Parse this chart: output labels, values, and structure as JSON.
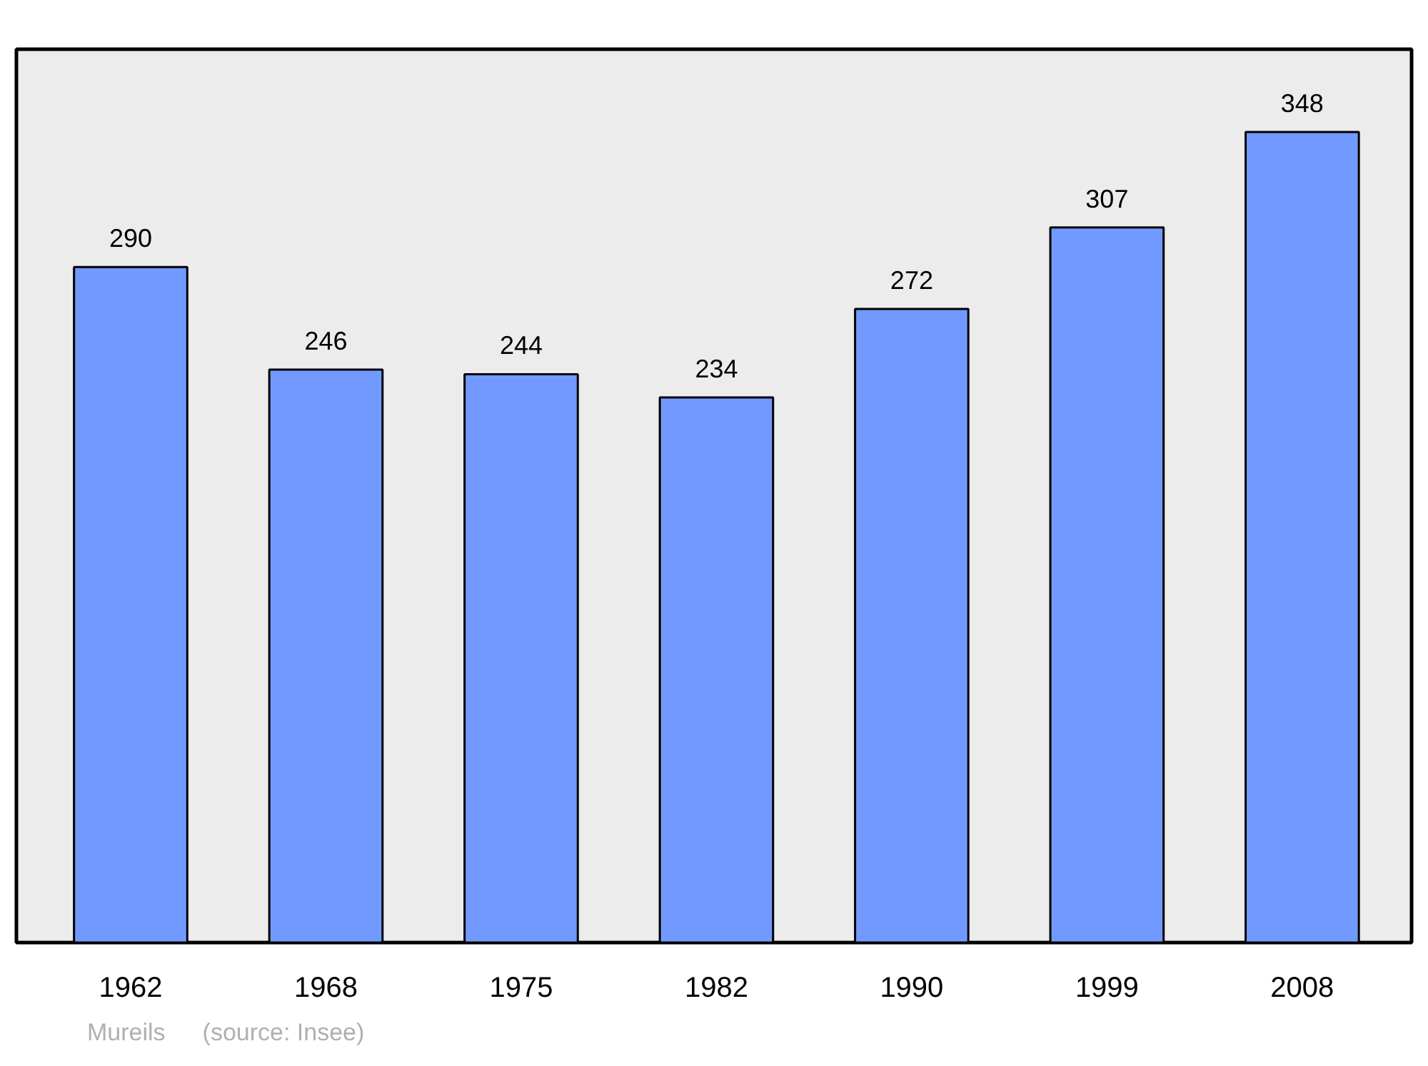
{
  "chart_data": {
    "type": "bar",
    "categories": [
      "1962",
      "1968",
      "1975",
      "1982",
      "1990",
      "1999",
      "2008"
    ],
    "values": [
      290,
      246,
      244,
      234,
      272,
      307,
      348
    ],
    "color": "#7299ff",
    "data_labels": true,
    "grid": false,
    "tick_labels": "x",
    "annotations": [
      "Mureils",
      "(source: Insee)"
    ]
  }
}
